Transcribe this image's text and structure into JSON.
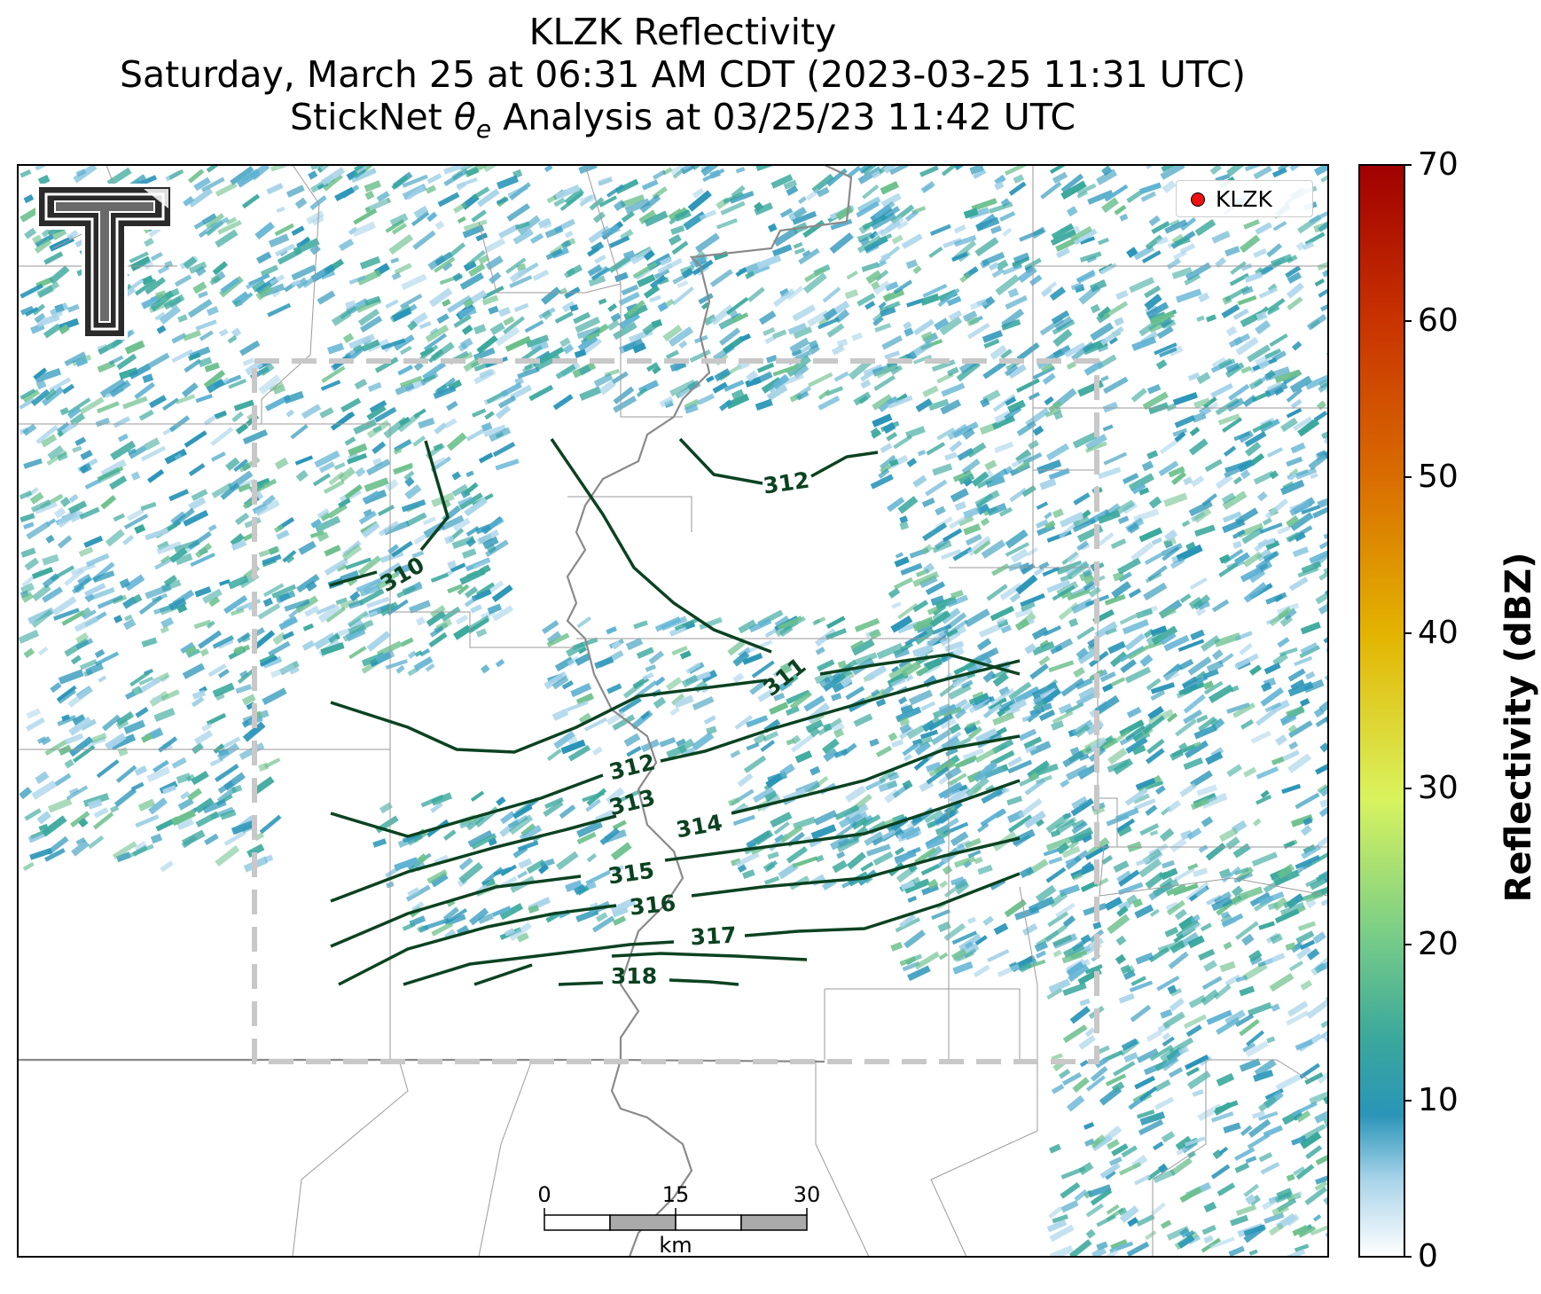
{
  "title": {
    "line1": "KLZK Reflectivity",
    "line2": "Saturday, March 25 at 06:31 AM CDT (2023-03-25 11:31 UTC)",
    "line3_pre": "StickNet ",
    "line3_theta": "θ",
    "line3_sub": "e",
    "line3_post": " Analysis at 03/25/23 11:42 UTC"
  },
  "legend": {
    "label": "KLZK",
    "marker_color": "#ee1111"
  },
  "colorbar": {
    "label": "Reflectivity (dBZ)",
    "ticks": [
      "0",
      "10",
      "20",
      "30",
      "40",
      "50",
      "60",
      "70"
    ],
    "range": [
      0,
      70
    ],
    "colors": [
      "#ffffff",
      "#a9d4ea",
      "#2a95b8",
      "#3aa89c",
      "#7ccf86",
      "#d9f35e",
      "#e3b400",
      "#d86a00",
      "#c83200",
      "#a00000"
    ]
  },
  "contours": {
    "color": "#0b4221",
    "labels": [
      "310",
      "311",
      "312",
      "312",
      "313",
      "314",
      "315",
      "316",
      "317",
      "318"
    ]
  },
  "scale_bar": {
    "ticks": [
      "0",
      "15",
      "30"
    ],
    "unit": "km"
  },
  "logo": {
    "name": "Texas Tech Double T"
  },
  "colors": {
    "domain_box": "#c8c8c8",
    "state_border": "#8a8a8a",
    "county_line": "#9a9a9a"
  }
}
